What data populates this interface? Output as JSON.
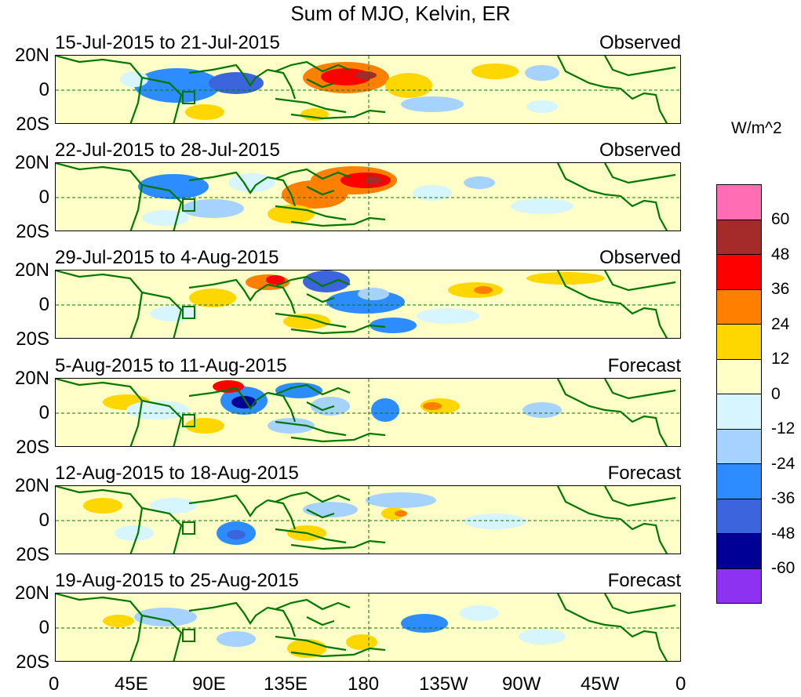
{
  "title": "Sum of MJO, Kelvin, ER",
  "units_label": "W/m^2",
  "lat_labels": [
    "20N",
    "0",
    "20S"
  ],
  "lon_labels": [
    "0",
    "45E",
    "90E",
    "135E",
    "180",
    "135W",
    "90W",
    "45W",
    "0"
  ],
  "panels": [
    {
      "date": "15-Jul-2015 to 21-Jul-2015",
      "kind": "Observed"
    },
    {
      "date": "22-Jul-2015 to 28-Jul-2015",
      "kind": "Observed"
    },
    {
      "date": "29-Jul-2015 to 4-Aug-2015",
      "kind": "Observed"
    },
    {
      "date": "5-Aug-2015 to 11-Aug-2015",
      "kind": "Forecast"
    },
    {
      "date": "12-Aug-2015 to 18-Aug-2015",
      "kind": "Forecast"
    },
    {
      "date": "19-Aug-2015 to 25-Aug-2015",
      "kind": "Forecast"
    }
  ],
  "colorbar": {
    "colors": [
      "#ff6eb4",
      "#a52a2a",
      "#ff0000",
      "#ff7f00",
      "#ffd700",
      "#ffffc8",
      "#d6f5ff",
      "#a6d2ff",
      "#2d8cff",
      "#3c64dc",
      "#000096",
      "#8c32f0"
    ],
    "labels": [
      "60",
      "48",
      "36",
      "24",
      "12",
      "0",
      "-12",
      "-24",
      "-36",
      "-48",
      "-60"
    ]
  },
  "colors": {
    "coastline": "#007800",
    "background": "#ffffc8"
  }
}
